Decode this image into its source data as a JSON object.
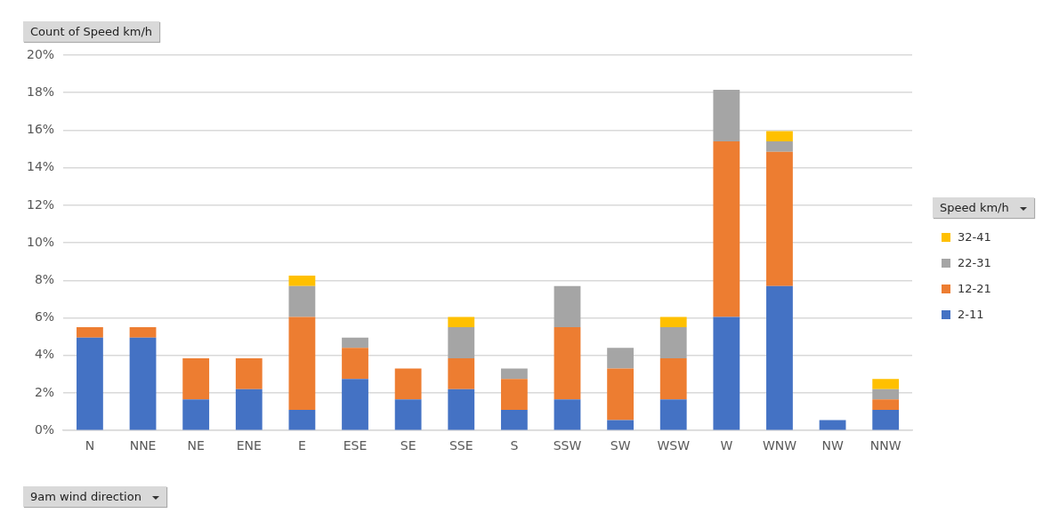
{
  "chart_data": {
    "type": "bar",
    "stacked": true,
    "title": "Count of Speed km/h",
    "xlabel": "9am wind direction",
    "legend_title": "Speed km/h",
    "legend": "right",
    "categories": [
      "N",
      "NNE",
      "NE",
      "ENE",
      "E",
      "ESE",
      "SE",
      "SSE",
      "S",
      "SSW",
      "SW",
      "WSW",
      "W",
      "WNW",
      "NW",
      "NNW"
    ],
    "series": [
      {
        "name": "2-11",
        "color": "#4472c4",
        "values": [
          4.95,
          4.95,
          1.65,
          2.2,
          1.1,
          2.75,
          1.65,
          2.2,
          1.1,
          1.65,
          0.55,
          1.65,
          6.05,
          7.7,
          0.55,
          1.1
        ]
      },
      {
        "name": "12-21",
        "color": "#ed7d31",
        "values": [
          0.55,
          0.55,
          2.2,
          1.65,
          4.95,
          1.65,
          1.65,
          1.65,
          1.65,
          3.85,
          2.75,
          2.2,
          9.35,
          7.15,
          null,
          0.55
        ]
      },
      {
        "name": "22-31",
        "color": "#a5a5a5",
        "values": [
          null,
          null,
          null,
          null,
          1.65,
          0.55,
          null,
          1.65,
          0.55,
          2.2,
          1.1,
          1.65,
          2.75,
          0.55,
          null,
          0.55
        ]
      },
      {
        "name": "32-41",
        "color": "#ffc000",
        "values": [
          null,
          null,
          null,
          null,
          0.55,
          null,
          null,
          0.55,
          null,
          null,
          null,
          0.55,
          null,
          0.55,
          null,
          0.55
        ]
      }
    ],
    "ylim": [
      0,
      20
    ],
    "yticks": [
      {
        "value": 0,
        "label": "0%"
      },
      {
        "value": 2,
        "label": "2%"
      },
      {
        "value": 4,
        "label": "4%"
      },
      {
        "value": 6,
        "label": "6%"
      },
      {
        "value": 8,
        "label": "8%"
      },
      {
        "value": 10,
        "label": "10%"
      },
      {
        "value": 12,
        "label": "12%"
      },
      {
        "value": 14,
        "label": "14%"
      },
      {
        "value": 16,
        "label": "16%"
      },
      {
        "value": 18,
        "label": "18%"
      },
      {
        "value": 20,
        "label": "20%"
      }
    ],
    "grid": "y"
  }
}
